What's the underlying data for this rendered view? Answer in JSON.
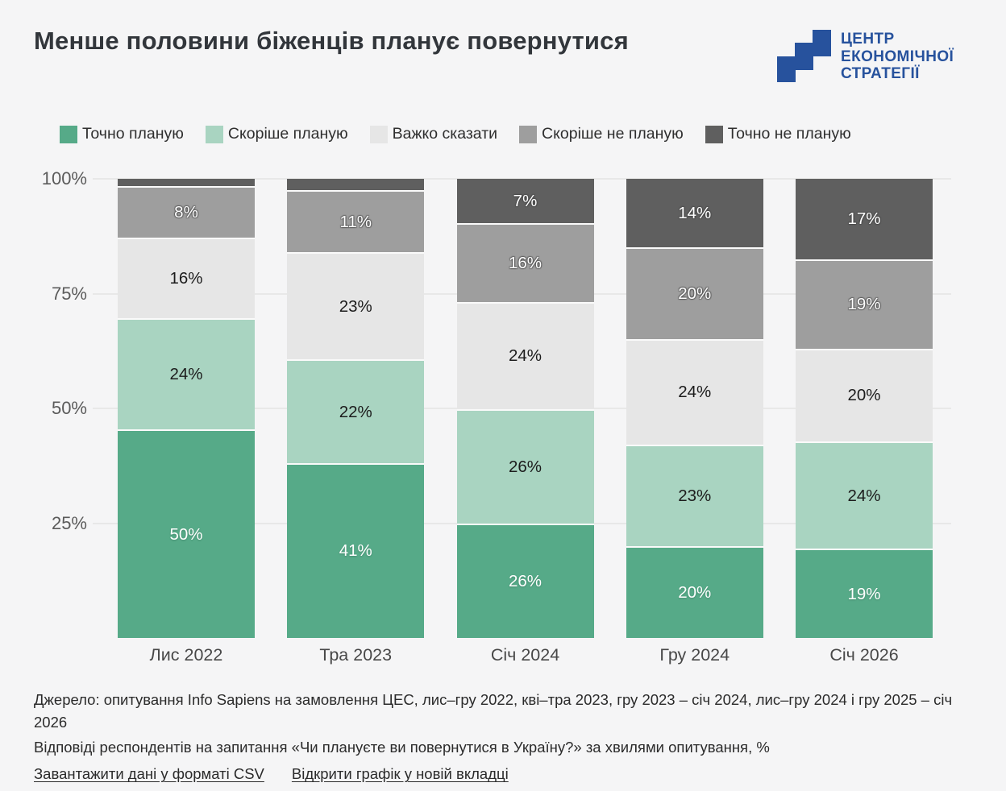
{
  "title": "Менше половини біженців планує повернутися",
  "logo": {
    "lines": [
      "ЦЕНТР",
      "ЕКОНОМІЧНОЇ",
      "СТРАТЕГІЇ"
    ],
    "color": "#27529d"
  },
  "chart_data": {
    "type": "bar",
    "variant": "stacked-column-100",
    "title": "Менше половини біженців планує повернутися",
    "categories": [
      "Лис 2022",
      "Тра 2023",
      "Січ 2024",
      "Гру 2024",
      "Січ 2026"
    ],
    "series": [
      {
        "name": "Точно планую",
        "color": "#56aa88",
        "label_style": "light",
        "values": [
          50,
          41,
          26,
          20,
          19
        ],
        "labels": [
          "50%",
          "41%",
          "26%",
          "20%",
          "19%"
        ]
      },
      {
        "name": "Скоріше планую",
        "color": "#a9d4c1",
        "label_style": "dark",
        "values": [
          24,
          22,
          26,
          23,
          24
        ],
        "labels": [
          "24%",
          "22%",
          "26%",
          "23%",
          "24%"
        ]
      },
      {
        "name": "Важко сказати",
        "color": "#e6e6e6",
        "label_style": "dark",
        "values": [
          16,
          23,
          24,
          24,
          20
        ],
        "labels": [
          "16%",
          "23%",
          "24%",
          "24%",
          "20%"
        ]
      },
      {
        "name": "Скоріше не планую",
        "color": "#9e9e9e",
        "label_style": "outline",
        "values": [
          8,
          11,
          16,
          20,
          19
        ],
        "labels": [
          "8%",
          "11%",
          "16%",
          "20%",
          "19%"
        ]
      },
      {
        "name": "Точно не планую",
        "color": "#5f5f5f",
        "label_style": "outline",
        "values": [
          2,
          3,
          7,
          14,
          17
        ],
        "labels": [
          "",
          "",
          "7%",
          "14%",
          "17%"
        ]
      }
    ],
    "y_axis": {
      "max": 100,
      "ticks": [
        {
          "label": "100%",
          "value": 100
        },
        {
          "label": "75%",
          "value": 75
        },
        {
          "label": "50%",
          "value": 50
        },
        {
          "label": "25%",
          "value": 25
        }
      ]
    },
    "grid": true,
    "legend_position": "top",
    "xlabel": "",
    "ylabel": ""
  },
  "footer": {
    "source": "Джерело: опитування Info Sapiens на замовлення ЦЕС, лис–гру 2022, кві–тра 2023, гру 2023 – січ 2024, лис–гру 2024 і гру 2025 – січ 2026",
    "note": "Відповіді респондентів на запитання «Чи плануєте ви повернутися в Україну?» за хвилями опитування, %",
    "links": [
      {
        "label": "Завантажити дані у форматі CSV"
      },
      {
        "label": "Відкрити графік у новій вкладці"
      }
    ]
  },
  "colors": {
    "background": "#f5f5f6",
    "grid": "#e8e8e8",
    "title": "#32363b",
    "axis_label": "#5b5b5b",
    "category_label": "#484848",
    "footer_text": "#2b2b2b",
    "logo_blue": "#27529d"
  }
}
